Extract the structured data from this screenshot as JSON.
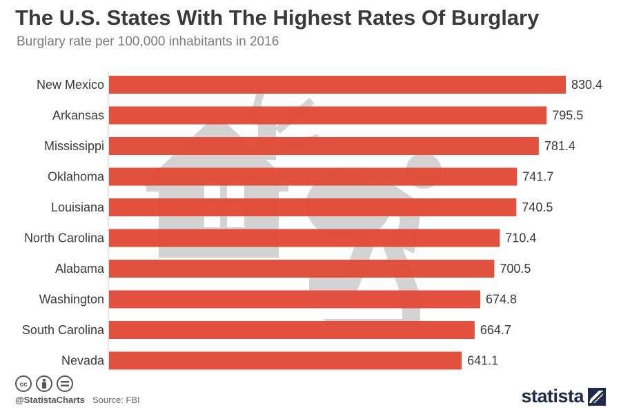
{
  "header": {
    "title": "The U.S. States With The Highest Rates Of Burglary",
    "subtitle": "Burglary rate per 100,000 inhabitants in 2016"
  },
  "footer": {
    "handle": "@StatistaCharts",
    "source": "Source: FBI",
    "brand": "statista"
  },
  "colors": {
    "bar": "#e04a36",
    "illustration": "#d3d3d3",
    "title": "#3a3a3a",
    "brand": "#1d2a4a"
  },
  "icons": [
    "cc-icon",
    "attribution-icon",
    "no-derivatives-icon",
    "statista-logo-icon",
    "house-icon",
    "burglar-icon"
  ],
  "chart_data": {
    "type": "bar",
    "orientation": "horizontal",
    "title": "The U.S. States With The Highest Rates Of Burglary",
    "subtitle": "Burglary rate per 100,000 inhabitants in 2016",
    "categories": [
      "New Mexico",
      "Arkansas",
      "Mississippi",
      "Oklahoma",
      "Louisiana",
      "North Carolina",
      "Alabama",
      "Washington",
      "South Carolina",
      "Nevada"
    ],
    "values": [
      830.4,
      795.5,
      781.4,
      741.7,
      740.5,
      710.4,
      700.5,
      674.8,
      664.7,
      641.1
    ],
    "value_labels": [
      "830.4",
      "795.5",
      "781.4",
      "741.7",
      "740.5",
      "710.4",
      "700.5",
      "674.8",
      "664.7",
      "641.1"
    ],
    "xlim": [
      0,
      830.4
    ],
    "grid": false,
    "legend": "none"
  }
}
